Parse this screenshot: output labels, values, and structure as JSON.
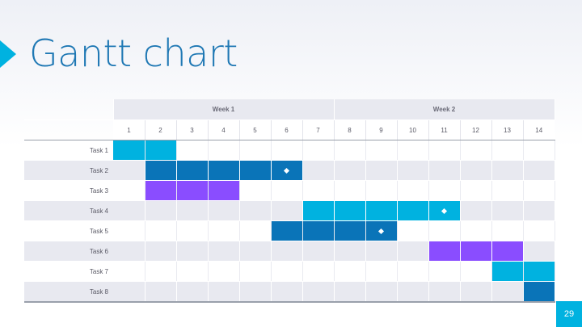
{
  "slide": {
    "title": "Gantt chart",
    "page_number": "29",
    "colors": {
      "accent": "#00b2e0",
      "title": "#1f78b4",
      "bar_cyan": "#00b2e0",
      "bar_blue": "#0a74b8",
      "bar_purple": "#8a4dff"
    }
  },
  "gantt": {
    "weeks": [
      {
        "label": "Week 1",
        "days": 7
      },
      {
        "label": "Week 2",
        "days": 7
      }
    ],
    "days": [
      "1",
      "2",
      "3",
      "4",
      "5",
      "6",
      "7",
      "8",
      "9",
      "10",
      "11",
      "12",
      "13",
      "14"
    ],
    "tasks": [
      {
        "label": "Task 1",
        "start": 1,
        "end": 2,
        "color": "cyan",
        "milestone": null
      },
      {
        "label": "Task 2",
        "start": 2,
        "end": 6,
        "color": "blue",
        "milestone": 6
      },
      {
        "label": "Task 3",
        "start": 2,
        "end": 4,
        "color": "purple",
        "milestone": null
      },
      {
        "label": "Task 4",
        "start": 7,
        "end": 11,
        "color": "cyan",
        "milestone": 11
      },
      {
        "label": "Task 5",
        "start": 6,
        "end": 9,
        "color": "blue",
        "milestone": 9
      },
      {
        "label": "Task 6",
        "start": 11,
        "end": 13,
        "color": "purple",
        "milestone": null
      },
      {
        "label": "Task 7",
        "start": 13,
        "end": 14,
        "color": "cyan",
        "milestone": null
      },
      {
        "label": "Task 8",
        "start": 14,
        "end": 14,
        "color": "blue",
        "milestone": null
      }
    ]
  }
}
